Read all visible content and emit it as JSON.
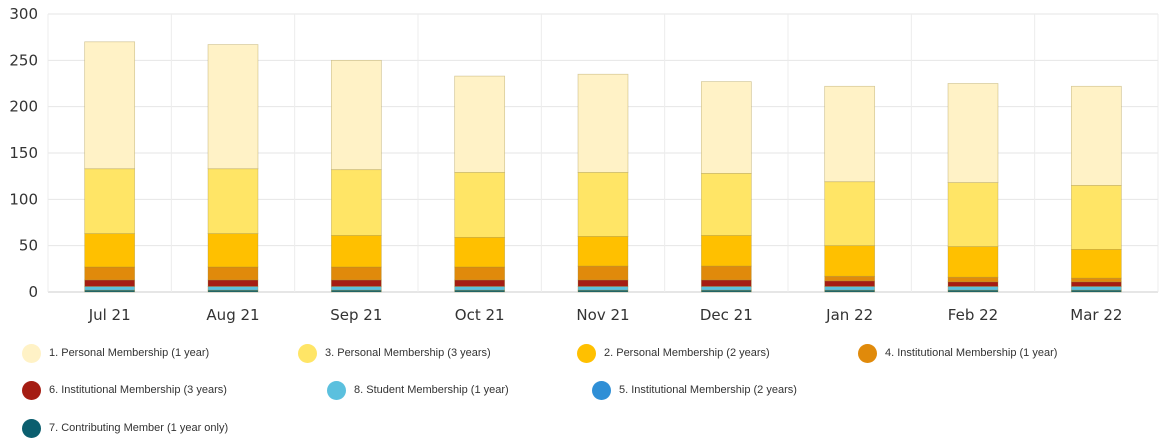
{
  "chart_data": {
    "type": "bar",
    "stacked": true,
    "categories": [
      "Jul 21",
      "Aug 21",
      "Sep 21",
      "Oct 21",
      "Nov 21",
      "Dec 21",
      "Jan 22",
      "Feb 22",
      "Mar 22"
    ],
    "ylim": [
      0,
      300
    ],
    "yticks": [
      0,
      50,
      100,
      150,
      200,
      250,
      300
    ],
    "grid": true,
    "legend_position": "bottom",
    "series": [
      {
        "name": "7. Contributing Member (1 year only)",
        "color": "#0b5e6e",
        "values": [
          2,
          2,
          2,
          2,
          2,
          2,
          2,
          2,
          2
        ]
      },
      {
        "name": "8. Student Membership (1 year)",
        "color": "#5bc0de",
        "values": [
          4,
          4,
          4,
          4,
          4,
          4,
          4,
          4,
          4
        ]
      },
      {
        "name": "5. Institutional Membership (2 years)",
        "color": "#2f8fd6",
        "values": [
          0,
          0,
          0,
          0,
          0,
          0,
          0,
          0,
          0
        ]
      },
      {
        "name": "6. Institutional Membership (3 years)",
        "color": "#a51d13",
        "values": [
          7,
          7,
          7,
          7,
          7,
          7,
          6,
          5,
          5
        ]
      },
      {
        "name": "4. Institutional Membership (1 year)",
        "color": "#e08a0b",
        "values": [
          14,
          14,
          14,
          14,
          15,
          15,
          5,
          5,
          4
        ]
      },
      {
        "name": "2. Personal Membership (2 years)",
        "color": "#ffc000",
        "values": [
          36,
          36,
          34,
          32,
          32,
          33,
          33,
          33,
          31
        ]
      },
      {
        "name": "3. Personal Membership (3 years)",
        "color": "#ffe566",
        "values": [
          70,
          70,
          71,
          70,
          69,
          67,
          69,
          69,
          69
        ]
      },
      {
        "name": "1. Personal Membership (1 year)",
        "color": "#fff2c6",
        "values": [
          137,
          134,
          118,
          104,
          106,
          99,
          103,
          107,
          107
        ]
      }
    ]
  },
  "legend": {
    "items": [
      {
        "label": "1. Personal Membership (1 year)",
        "color": "#fff2c6"
      },
      {
        "label": "3. Personal Membership (3 years)",
        "color": "#ffe566"
      },
      {
        "label": "2. Personal Membership (2 years)",
        "color": "#ffc000"
      },
      {
        "label": "4. Institutional Membership (1 year)",
        "color": "#e08a0b"
      },
      {
        "label": "6. Institutional Membership (3 years)",
        "color": "#a51d13"
      },
      {
        "label": "8. Student Membership (1 year)",
        "color": "#5bc0de"
      },
      {
        "label": "5. Institutional Membership (2 years)",
        "color": "#2f8fd6"
      },
      {
        "label": "7. Contributing Member (1 year only)",
        "color": "#0b5e6e"
      }
    ]
  }
}
